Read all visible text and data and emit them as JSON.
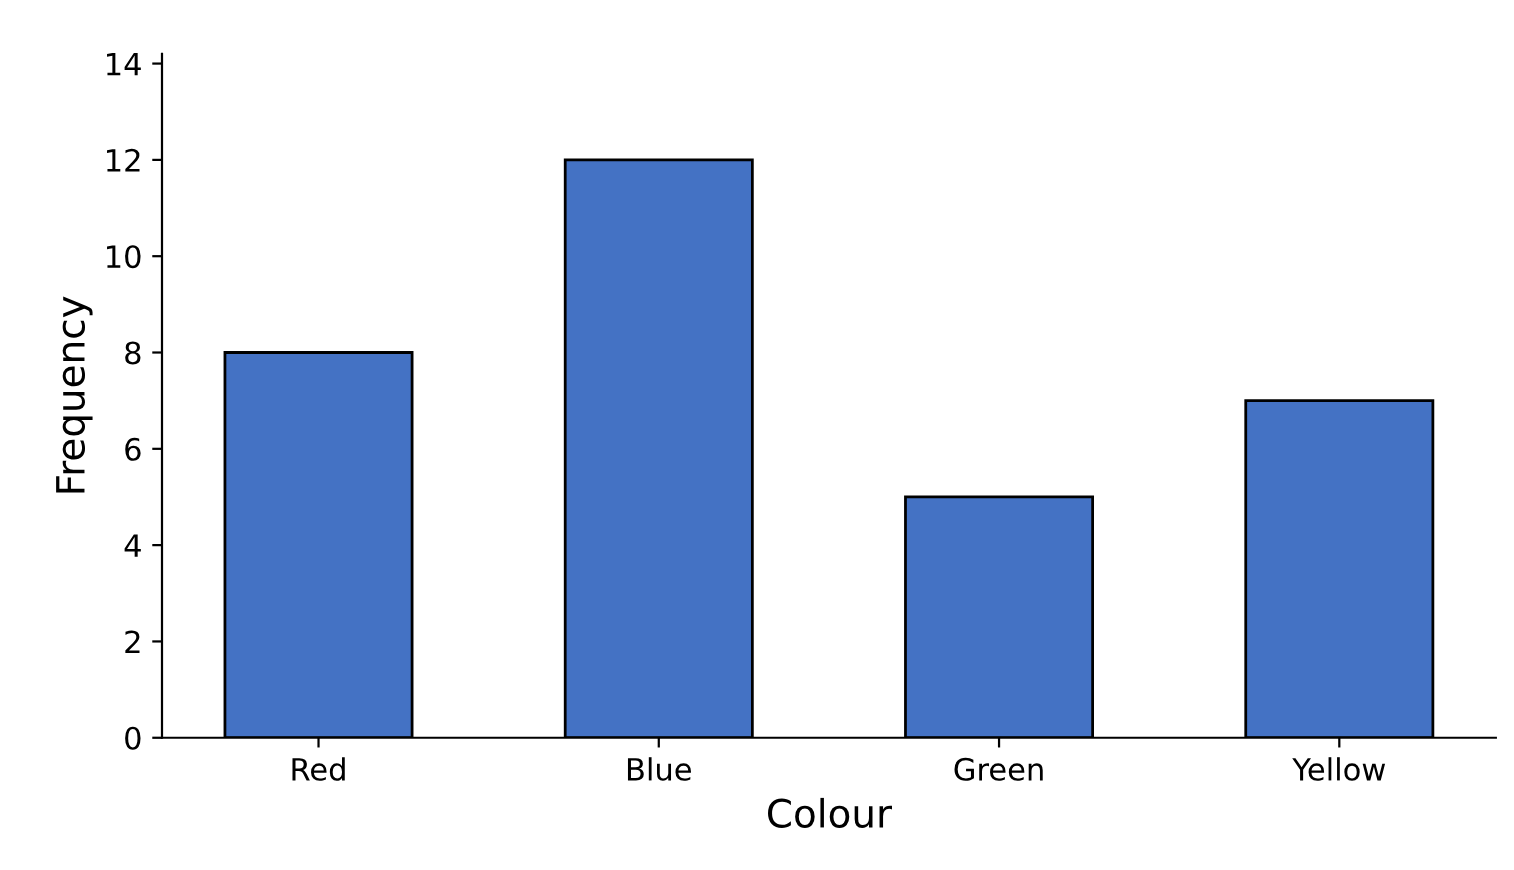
{
  "chart_data": {
    "type": "bar",
    "xlabel": "Colour",
    "ylabel": "Frequency",
    "categories": [
      "Red",
      "Blue",
      "Green",
      "Yellow"
    ],
    "values": [
      8,
      12,
      5,
      7
    ],
    "color": "#4472c4",
    "ylim": [
      0,
      14.2
    ],
    "yticks": [
      0,
      2,
      4,
      6,
      8,
      10,
      12,
      14
    ],
    "grid": false
  }
}
